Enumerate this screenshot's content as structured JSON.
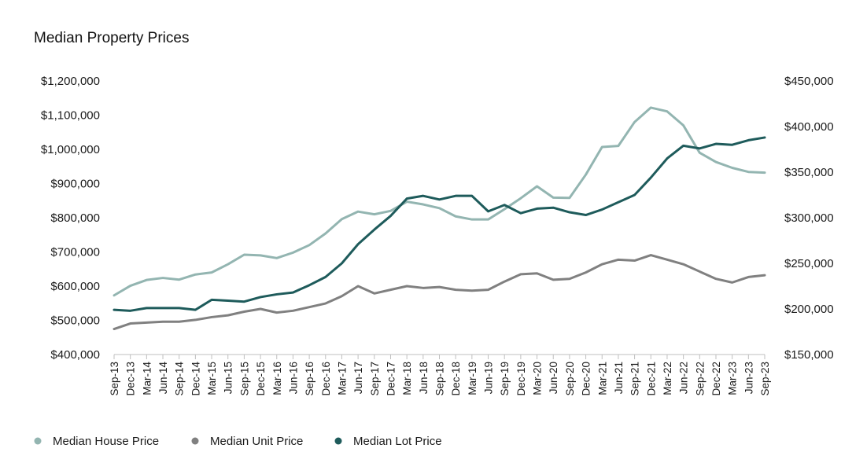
{
  "chart_data": {
    "type": "line",
    "title": "Median Property Prices",
    "xlabel": "",
    "ylabel": "",
    "legend_position": "bottom-left",
    "grid": false,
    "x": [
      "Sep-13",
      "Dec-13",
      "Mar-14",
      "Jun-14",
      "Sep-14",
      "Dec-14",
      "Mar-15",
      "Jun-15",
      "Sep-15",
      "Dec-15",
      "Mar-16",
      "Jun-16",
      "Sep-16",
      "Dec-16",
      "Mar-17",
      "Jun-17",
      "Sep-17",
      "Dec-17",
      "Mar-18",
      "Jun-18",
      "Sep-18",
      "Dec-18",
      "Mar-19",
      "Jun-19",
      "Sep-19",
      "Dec-19",
      "Mar-20",
      "Jun-20",
      "Sep-20",
      "Dec-20",
      "Mar-21",
      "Jun-21",
      "Sep-21",
      "Dec-21",
      "Mar-22",
      "Jun-22",
      "Sep-22",
      "Dec-22",
      "Mar-23",
      "Jun-23",
      "Sep-23"
    ],
    "y_left": {
      "min": 400000,
      "max": 1200000,
      "ticks": [
        400000,
        500000,
        600000,
        700000,
        800000,
        900000,
        1000000,
        1100000,
        1200000
      ],
      "tick_labels": [
        "$400,000",
        "$500,000",
        "$600,000",
        "$700,000",
        "$800,000",
        "$900,000",
        "$1,000,000",
        "$1,100,000",
        "$1,200,000"
      ]
    },
    "y_right": {
      "min": 150000,
      "max": 450000,
      "ticks": [
        150000,
        200000,
        250000,
        300000,
        350000,
        400000,
        450000
      ],
      "tick_labels": [
        "$150,000",
        "$200,000",
        "$250,000",
        "$300,000",
        "$350,000",
        "$400,000",
        "$450,000"
      ]
    },
    "series": [
      {
        "name": "Median House Price",
        "axis": "left",
        "color": "#93b5b1",
        "points": [
          [
            0,
            573000
          ],
          [
            1,
            601000
          ],
          [
            2,
            618000
          ],
          [
            3,
            624000
          ],
          [
            4,
            619000
          ],
          [
            5,
            634000
          ],
          [
            6,
            640000
          ],
          [
            7,
            664000
          ],
          [
            8,
            692000
          ],
          [
            9,
            690000
          ],
          [
            10,
            682000
          ],
          [
            11,
            698000
          ],
          [
            12,
            720000
          ],
          [
            13,
            754000
          ],
          [
            14,
            796000
          ],
          [
            15,
            818000
          ],
          [
            16,
            810000
          ],
          [
            17,
            820000
          ],
          [
            18,
            847000
          ],
          [
            19,
            839000
          ],
          [
            20,
            828000
          ],
          [
            21,
            804000
          ],
          [
            22,
            795000
          ],
          [
            23,
            795000
          ],
          [
            24,
            825000
          ],
          [
            25,
            857000
          ],
          [
            26,
            892000
          ],
          [
            27,
            859000
          ],
          [
            28,
            858000
          ],
          [
            29,
            926000
          ],
          [
            30,
            1007000
          ],
          [
            31,
            1010000
          ],
          [
            32,
            1080000
          ],
          [
            33,
            1122000
          ],
          [
            34,
            1111000
          ],
          [
            35,
            1070000
          ],
          [
            36,
            990000
          ],
          [
            37,
            963000
          ],
          [
            38,
            946000
          ],
          [
            39,
            934000
          ],
          [
            40,
            932000
          ]
        ]
      },
      {
        "name": "Median Unit Price",
        "axis": "right",
        "color": "#808080",
        "points": [
          [
            0,
            178000
          ],
          [
            1,
            184000
          ],
          [
            2,
            185000
          ],
          [
            3,
            186000
          ],
          [
            4,
            186000
          ],
          [
            5,
            188000
          ],
          [
            6,
            191000
          ],
          [
            7,
            193000
          ],
          [
            8,
            197000
          ],
          [
            9,
            200000
          ],
          [
            10,
            196000
          ],
          [
            11,
            198000
          ],
          [
            12,
            202000
          ],
          [
            13,
            206000
          ],
          [
            14,
            214000
          ],
          [
            15,
            225000
          ],
          [
            16,
            217000
          ],
          [
            17,
            221000
          ],
          [
            18,
            225000
          ],
          [
            19,
            223000
          ],
          [
            20,
            224000
          ],
          [
            21,
            221000
          ],
          [
            22,
            220000
          ],
          [
            23,
            221000
          ],
          [
            24,
            230000
          ],
          [
            25,
            238000
          ],
          [
            26,
            239000
          ],
          [
            27,
            232000
          ],
          [
            28,
            233000
          ],
          [
            29,
            240000
          ],
          [
            30,
            249000
          ],
          [
            31,
            254000
          ],
          [
            32,
            253000
          ],
          [
            33,
            259000
          ],
          [
            34,
            254000
          ],
          [
            35,
            249000
          ],
          [
            36,
            241000
          ],
          [
            37,
            233000
          ],
          [
            38,
            229000
          ],
          [
            39,
            235000
          ],
          [
            40,
            237000
          ]
        ]
      },
      {
        "name": "Median Lot Price",
        "axis": "right",
        "color": "#1e5b5b",
        "points": [
          [
            0,
            199000
          ],
          [
            1,
            198000
          ],
          [
            2,
            201000
          ],
          [
            3,
            201000
          ],
          [
            4,
            201000
          ],
          [
            5,
            199000
          ],
          [
            6,
            210000
          ],
          [
            7,
            209000
          ],
          [
            8,
            208000
          ],
          [
            9,
            213000
          ],
          [
            10,
            216000
          ],
          [
            11,
            218000
          ],
          [
            12,
            226000
          ],
          [
            13,
            235000
          ],
          [
            14,
            250000
          ],
          [
            15,
            271000
          ],
          [
            16,
            287000
          ],
          [
            17,
            302000
          ],
          [
            18,
            321000
          ],
          [
            19,
            324000
          ],
          [
            20,
            320000
          ],
          [
            21,
            324000
          ],
          [
            22,
            324000
          ],
          [
            23,
            307000
          ],
          [
            24,
            314000
          ],
          [
            25,
            305000
          ],
          [
            26,
            310000
          ],
          [
            27,
            311000
          ],
          [
            28,
            306000
          ],
          [
            29,
            303000
          ],
          [
            30,
            309000
          ],
          [
            31,
            317000
          ],
          [
            32,
            325000
          ],
          [
            33,
            344000
          ],
          [
            34,
            365000
          ],
          [
            35,
            379000
          ],
          [
            36,
            376000
          ],
          [
            37,
            381000
          ],
          [
            38,
            380000
          ],
          [
            39,
            385000
          ],
          [
            40,
            388000
          ]
        ]
      }
    ]
  }
}
